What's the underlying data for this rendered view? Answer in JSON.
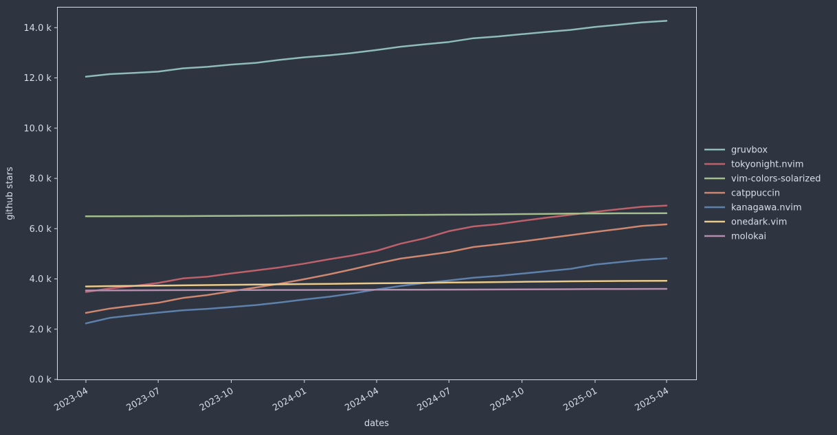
{
  "chart_data": {
    "type": "line",
    "title": "",
    "xlabel": "dates",
    "ylabel": "github stars",
    "x": [
      "2023-04-01",
      "2023-05-01",
      "2023-06-01",
      "2023-07-01",
      "2023-08-01",
      "2023-09-01",
      "2023-10-01",
      "2023-11-01",
      "2023-12-01",
      "2024-01-01",
      "2024-02-01",
      "2024-03-01",
      "2024-04-01",
      "2024-05-01",
      "2024-06-01",
      "2024-07-01",
      "2024-08-01",
      "2024-09-01",
      "2024-10-01",
      "2024-11-01",
      "2024-12-01",
      "2025-01-01",
      "2025-02-01",
      "2025-03-01",
      "2025-04-01"
    ],
    "xticks": [
      "2023-04",
      "2023-07",
      "2023-10",
      "2024-01",
      "2024-04",
      "2024-07",
      "2024-10",
      "2025-01",
      "2025-04"
    ],
    "ylim": [
      0,
      14800
    ],
    "yticks": [
      0,
      2000,
      4000,
      6000,
      8000,
      10000,
      12000,
      14000
    ],
    "ytick_labels": [
      "0.0 k",
      "2.0 k",
      "4.0 k",
      "6.0 k",
      "8.0 k",
      "10.0 k",
      "12.0 k",
      "14.0 k"
    ],
    "grid": false,
    "legend_position": "right, outside plot",
    "series": [
      {
        "name": "gruvbox",
        "color": "#8fbcbb",
        "values": [
          12050,
          12150,
          12200,
          12250,
          12380,
          12440,
          12530,
          12600,
          12720,
          12820,
          12900,
          12990,
          13110,
          13240,
          13340,
          13430,
          13580,
          13650,
          13740,
          13830,
          13910,
          14030,
          14120,
          14210,
          14270
        ]
      },
      {
        "name": "tokyonight.nvim",
        "color": "#bf616a",
        "values": [
          3480,
          3620,
          3720,
          3840,
          4020,
          4090,
          4220,
          4340,
          4460,
          4610,
          4780,
          4930,
          5120,
          5400,
          5620,
          5900,
          6090,
          6180,
          6310,
          6440,
          6550,
          6670,
          6780,
          6870,
          6920
        ]
      },
      {
        "name": "vim-colors-solarized",
        "color": "#a3be8c",
        "values": [
          6490,
          6492,
          6495,
          6498,
          6500,
          6505,
          6510,
          6515,
          6520,
          6525,
          6530,
          6535,
          6540,
          6545,
          6550,
          6555,
          6560,
          6570,
          6580,
          6590,
          6600,
          6605,
          6610,
          6612,
          6615
        ]
      },
      {
        "name": "catppuccin",
        "color": "#d08770",
        "values": [
          2650,
          2820,
          2940,
          3050,
          3240,
          3360,
          3510,
          3660,
          3810,
          3990,
          4180,
          4380,
          4610,
          4810,
          4940,
          5070,
          5270,
          5380,
          5490,
          5620,
          5740,
          5870,
          5990,
          6110,
          6170
        ]
      },
      {
        "name": "kanagawa.nvim",
        "color": "#5e81ac",
        "values": [
          2230,
          2450,
          2560,
          2660,
          2750,
          2810,
          2880,
          2960,
          3060,
          3180,
          3290,
          3420,
          3580,
          3720,
          3840,
          3940,
          4050,
          4120,
          4210,
          4310,
          4400,
          4570,
          4670,
          4760,
          4820
        ]
      },
      {
        "name": "onedark.vim",
        "color": "#ebcb8b",
        "values": [
          3700,
          3715,
          3725,
          3735,
          3745,
          3755,
          3765,
          3775,
          3785,
          3795,
          3805,
          3815,
          3825,
          3835,
          3845,
          3855,
          3865,
          3875,
          3885,
          3895,
          3905,
          3912,
          3918,
          3922,
          3925
        ]
      },
      {
        "name": "molokai",
        "color": "#b48ead",
        "values": [
          3540,
          3545,
          3548,
          3550,
          3552,
          3554,
          3556,
          3558,
          3560,
          3562,
          3564,
          3566,
          3568,
          3570,
          3572,
          3574,
          3576,
          3580,
          3584,
          3588,
          3592,
          3596,
          3600,
          3603,
          3605
        ]
      }
    ]
  }
}
